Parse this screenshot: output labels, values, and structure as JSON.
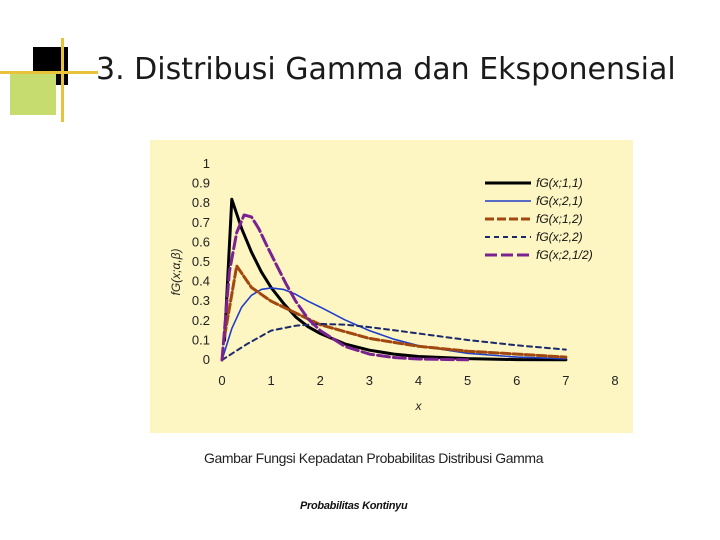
{
  "slide": {
    "title": "3. Distribusi Gamma dan Eksponensial",
    "caption": "Gambar Fungsi Kepadatan Probabilitas Distribusi Gamma",
    "footer": "Probabilitas Kontinyu"
  },
  "colors": {
    "panel_bg": "#fdf5c2",
    "accent_green": "#c6dc6e",
    "accent_gold": "#e8c23a"
  },
  "chart_data": {
    "type": "line",
    "title": "",
    "xlabel": "x",
    "ylabel": "fG(x;α,β)",
    "xlim": [
      0,
      8
    ],
    "ylim": [
      0,
      1
    ],
    "x_ticks": [
      "0",
      "1",
      "2",
      "3",
      "4",
      "5",
      "6",
      "7",
      "8"
    ],
    "y_ticks": [
      "0",
      "0.1",
      "0.2",
      "0.3",
      "0.4",
      "0.5",
      "0.6",
      "0.7",
      "0.8",
      "0.9",
      "1"
    ],
    "grid": false,
    "legend_position": "top-right",
    "series": [
      {
        "name": "fG(x;1,1)",
        "color": "#000000",
        "dash": "none",
        "width": 3,
        "x": [
          0.05,
          0.2,
          0.4,
          0.6,
          0.8,
          1.0,
          1.25,
          1.5,
          1.75,
          2.0,
          2.5,
          3.0,
          3.5,
          4.0,
          5.0,
          6.0,
          7.0
        ],
        "y": [
          0.1,
          0.82,
          0.67,
          0.55,
          0.45,
          0.37,
          0.29,
          0.22,
          0.17,
          0.135,
          0.082,
          0.05,
          0.03,
          0.018,
          0.007,
          0.002,
          0.001
        ]
      },
      {
        "name": "fG(x;2,1)",
        "color": "#1f3fc8",
        "dash": "none",
        "width": 1.6,
        "x": [
          0,
          0.2,
          0.4,
          0.6,
          0.8,
          1.0,
          1.25,
          1.5,
          1.75,
          2.0,
          2.5,
          3.0,
          3.5,
          4.0,
          5.0,
          6.0,
          7.0
        ],
        "y": [
          0,
          0.16,
          0.27,
          0.33,
          0.36,
          0.368,
          0.36,
          0.335,
          0.3,
          0.27,
          0.205,
          0.15,
          0.106,
          0.073,
          0.034,
          0.015,
          0.006
        ]
      },
      {
        "name": "fG(x;1,2)",
        "color": "#a0480e",
        "dash": "9,3",
        "width": 3,
        "x": [
          0.05,
          0.3,
          0.6,
          1.0,
          1.5,
          2.0,
          2.5,
          3.0,
          3.5,
          4.0,
          5.0,
          6.0,
          7.0
        ],
        "y": [
          0.12,
          0.48,
          0.37,
          0.3,
          0.24,
          0.18,
          0.145,
          0.11,
          0.09,
          0.07,
          0.045,
          0.03,
          0.015
        ]
      },
      {
        "name": "fG(x;2,2)",
        "color": "#1a2a6c",
        "dash": "5,4",
        "width": 2,
        "x": [
          0,
          0.5,
          1.0,
          1.5,
          2.0,
          2.5,
          3.0,
          3.5,
          4.0,
          5.0,
          6.0,
          7.0
        ],
        "y": [
          0,
          0.08,
          0.15,
          0.175,
          0.184,
          0.18,
          0.168,
          0.152,
          0.135,
          0.102,
          0.075,
          0.053
        ]
      },
      {
        "name": "fG(x;2,1/2)",
        "color": "#7a2390",
        "dash": "12,4",
        "width": 3,
        "x": [
          0,
          0.15,
          0.3,
          0.45,
          0.6,
          0.75,
          0.9,
          1.1,
          1.3,
          1.5,
          1.75,
          2.0,
          2.5,
          3.0,
          3.5,
          4.0,
          5.0
        ],
        "y": [
          0,
          0.45,
          0.65,
          0.74,
          0.73,
          0.67,
          0.59,
          0.49,
          0.39,
          0.3,
          0.21,
          0.15,
          0.07,
          0.03,
          0.013,
          0.005,
          0.001
        ]
      }
    ]
  }
}
